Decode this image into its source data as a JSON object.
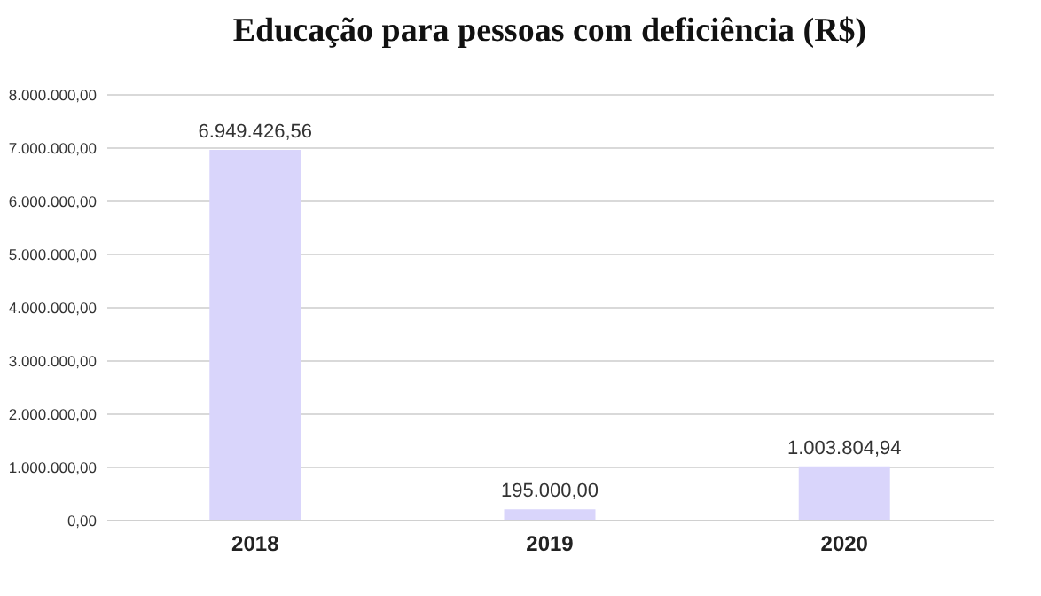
{
  "chart_data": {
    "type": "bar",
    "title": "Educação para pessoas com deficiência (R$)",
    "categories": [
      "2018",
      "2019",
      "2020"
    ],
    "values": [
      6949426.56,
      195000,
      1003804.94
    ],
    "value_labels": [
      "6.949.426,56",
      "195.000,00",
      "1.003.804,94"
    ],
    "color": "#d9d5fb",
    "ylim": [
      0,
      8000000
    ],
    "yticks": [
      {
        "value": 0,
        "label": "0,00"
      },
      {
        "value": 1000000,
        "label": "1.000.000,00"
      },
      {
        "value": 2000000,
        "label": "2.000.000,00"
      },
      {
        "value": 3000000,
        "label": "3.000.000,00"
      },
      {
        "value": 4000000,
        "label": "4.000.000,00"
      },
      {
        "value": 5000000,
        "label": "5.000.000,00"
      },
      {
        "value": 6000000,
        "label": "6.000.000,00"
      },
      {
        "value": 7000000,
        "label": "7.000.000,00"
      },
      {
        "value": 8000000,
        "label": "8.000.000,00"
      }
    ],
    "grid": "y"
  }
}
